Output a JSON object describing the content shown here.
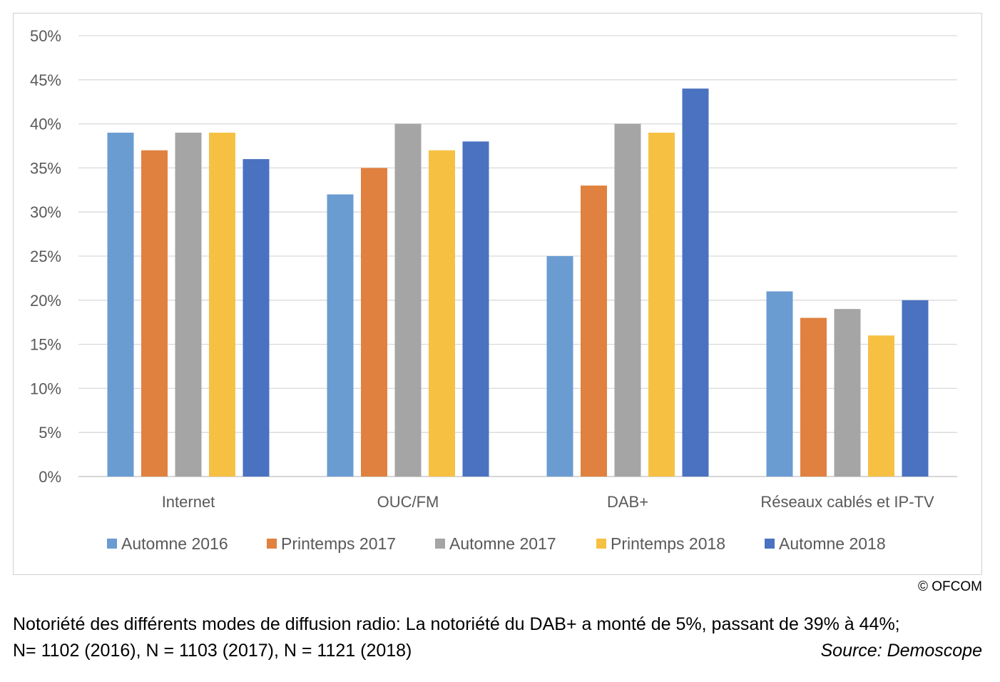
{
  "chart_data": {
    "type": "bar",
    "categories": [
      "Internet",
      "OUC/FM",
      "DAB+",
      "Réseaux cablés et IP-TV"
    ],
    "series": [
      {
        "name": "Automne 2016",
        "color": "#6a9cd2",
        "values": [
          39,
          32,
          25,
          21
        ]
      },
      {
        "name": "Printemps 2017",
        "color": "#e0813f",
        "values": [
          37,
          35,
          33,
          18
        ]
      },
      {
        "name": "Automne 2017",
        "color": "#a5a5a5",
        "values": [
          39,
          40,
          40,
          19
        ]
      },
      {
        "name": "Printemps 2018",
        "color": "#f6c142",
        "values": [
          39,
          37,
          39,
          16
        ]
      },
      {
        "name": "Automne 2018",
        "color": "#4a72c0",
        "values": [
          36,
          38,
          44,
          20
        ]
      }
    ],
    "yticks": [
      "0%",
      "5%",
      "10%",
      "15%",
      "20%",
      "25%",
      "30%",
      "35%",
      "40%",
      "45%",
      "50%"
    ],
    "ylim": [
      0,
      50
    ],
    "yunit": "%",
    "grid": true,
    "legend": "bottom",
    "xlabel": "",
    "ylabel": ""
  },
  "copyright": "© OFCOM",
  "caption": {
    "line1": "Notoriété des différents modes de diffusion radio: La notoriété du DAB+ a monté de 5%, passant de 39% à 44%;",
    "line2": "N= 1102 (2016), N = 1103 (2017), N = 1121 (2018)",
    "source": "Source: Demoscope"
  }
}
